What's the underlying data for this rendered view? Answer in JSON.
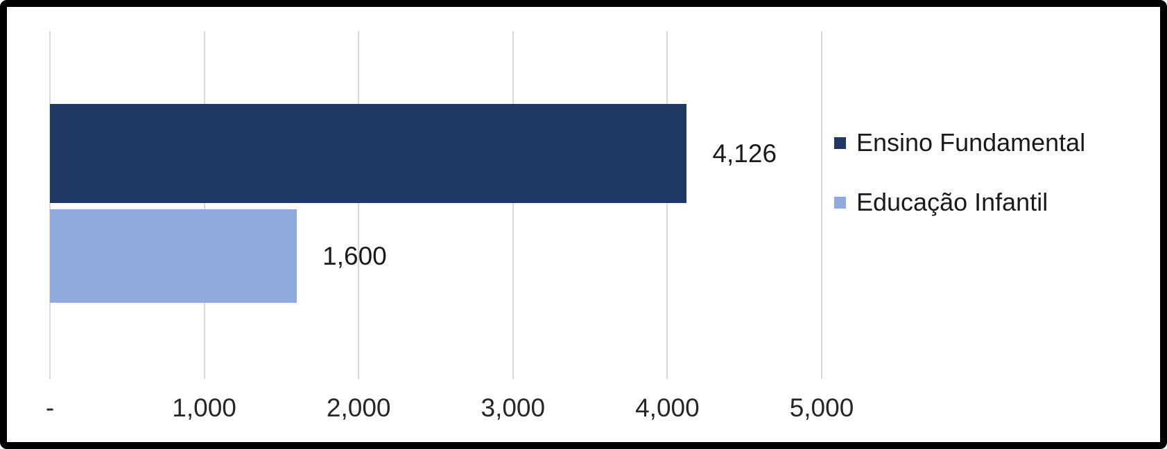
{
  "chart_data": {
    "type": "bar",
    "orientation": "horizontal",
    "title": "",
    "xlabel": "",
    "ylabel": "",
    "categories": [
      "Ensino Fundamental",
      "Educação Infantil"
    ],
    "values": [
      4126,
      1600
    ],
    "value_labels": [
      "4,126",
      "1,600"
    ],
    "series_colors": [
      "#203864",
      "#8FAADC"
    ],
    "xlim": [
      0,
      5000
    ],
    "x_ticks": [
      "-",
      "1,000",
      "2,000",
      "3,000",
      "4,000",
      "5,000"
    ],
    "x_tick_values": [
      0,
      1000,
      2000,
      3000,
      4000,
      5000
    ],
    "grid": "vertical-only",
    "gridline_color": "#D9D9D9",
    "legend": {
      "position": "right",
      "entries": [
        {
          "label": "Ensino Fundamental",
          "color": "#203864"
        },
        {
          "label": "Educação Infantil",
          "color": "#8FAADC"
        }
      ]
    }
  },
  "colors": {
    "frame_border": "#000000",
    "background": "#FFFFFF",
    "text": "#1A1A1A"
  }
}
